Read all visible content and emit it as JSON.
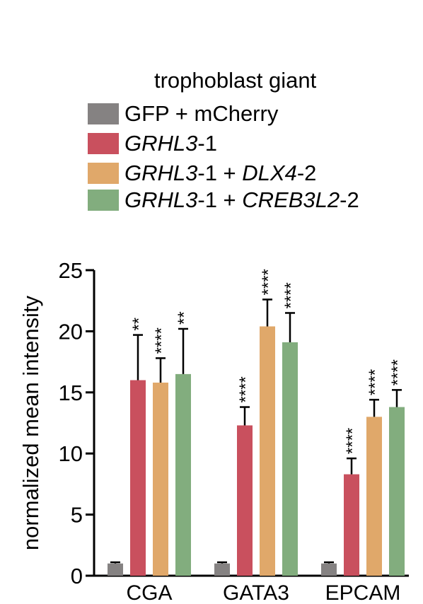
{
  "legend": {
    "title": "trophoblast giant",
    "items": [
      {
        "label": "GFP + mCherry",
        "color": "#858282"
      },
      {
        "label": "GRHL3-1",
        "color": "#c9505e"
      },
      {
        "label": "GRHL3-1 + DLX4-2",
        "color": "#e0a86a"
      },
      {
        "label": "GRHL3-1 + CREB3L2-2",
        "color": "#82ad7e"
      }
    ]
  },
  "chart_data": {
    "type": "bar",
    "ylabel": "normalized mean intensity",
    "xlabel": "",
    "ylim": [
      0,
      25
    ],
    "yticks": [
      0,
      5,
      10,
      15,
      20,
      25
    ],
    "categories": [
      "CGA",
      "GATA3",
      "EPCAM"
    ],
    "legend_position": "top",
    "grid": false,
    "series": [
      {
        "name": "GFP + mCherry",
        "color": "#858282",
        "values": [
          1.0,
          1.0,
          1.0
        ],
        "errors": [
          0.1,
          0.1,
          0.1
        ],
        "significance": [
          "",
          "",
          ""
        ]
      },
      {
        "name": "GRHL3-1",
        "color": "#c9505e",
        "values": [
          16.0,
          12.3,
          8.3
        ],
        "errors": [
          3.7,
          1.5,
          1.3
        ],
        "significance": [
          "**",
          "****",
          "****"
        ]
      },
      {
        "name": "GRHL3-1 + DLX4-2",
        "color": "#e0a86a",
        "values": [
          15.8,
          20.4,
          13.0
        ],
        "errors": [
          2.0,
          2.2,
          1.4
        ],
        "significance": [
          "****",
          "****",
          "****"
        ]
      },
      {
        "name": "GRHL3-1 + CREB3L2-2",
        "color": "#82ad7e",
        "values": [
          16.5,
          19.1,
          13.8
        ],
        "errors": [
          3.7,
          2.4,
          1.4
        ],
        "significance": [
          "**",
          "****",
          "****"
        ]
      }
    ]
  }
}
